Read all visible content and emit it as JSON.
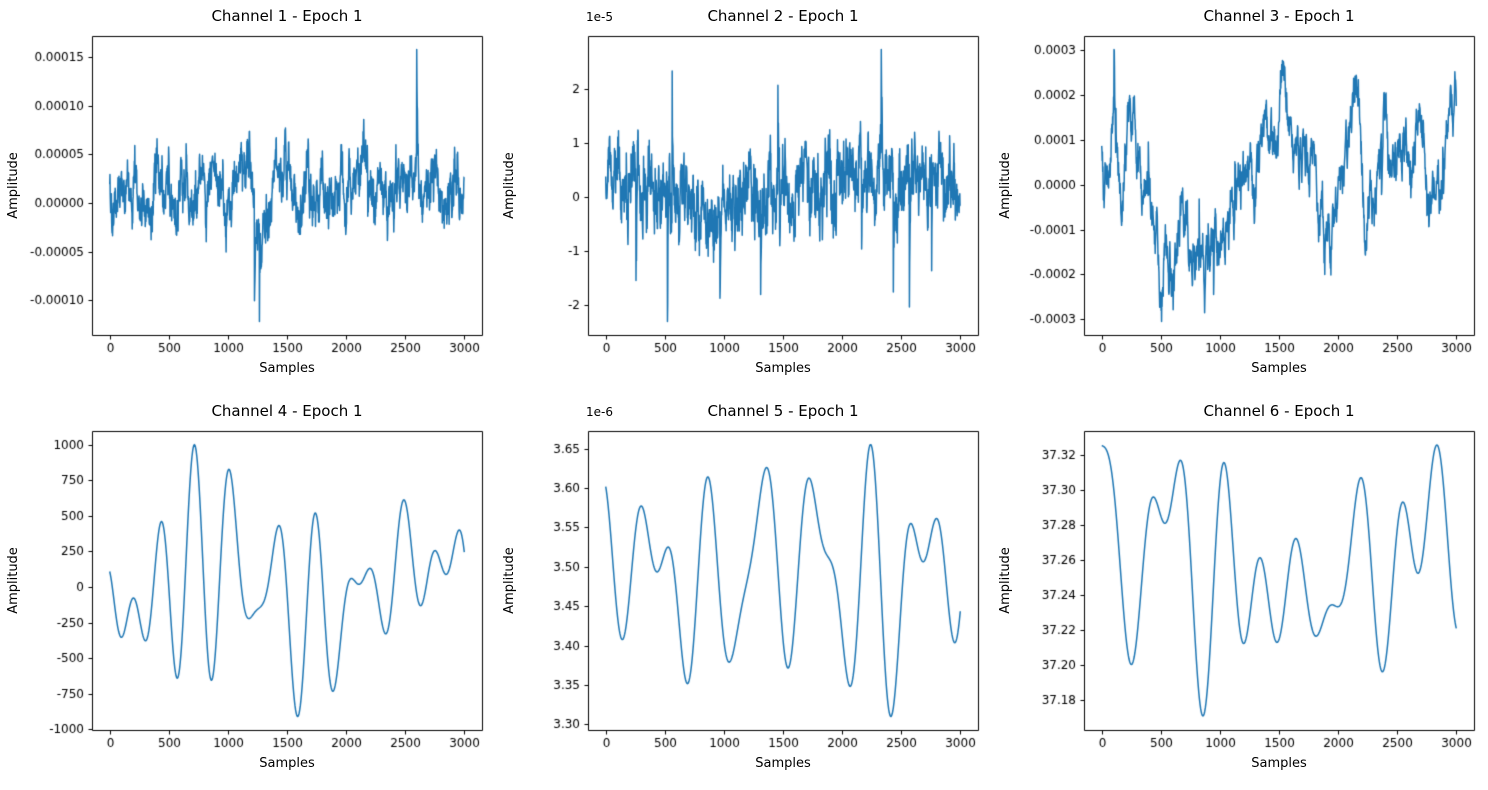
{
  "figure": {
    "background": "#ffffff",
    "line_color": "#1f77b4",
    "text_color": "#000000",
    "rows": 2,
    "cols": 3
  },
  "chart_data": [
    {
      "type": "line",
      "title": "Channel 1 - Epoch 1",
      "xlabel": "Samples",
      "ylabel": "Amplitude",
      "offset_text": "",
      "grid": false,
      "xlim": [
        -150,
        3150
      ],
      "xticks": [
        0,
        500,
        1000,
        1500,
        2000,
        2500,
        3000
      ],
      "xtick_labels": [
        "0",
        "500",
        "1000",
        "1500",
        "2000",
        "2500",
        "3000"
      ],
      "ylim": [
        -0.000136,
        0.000172
      ],
      "yticks": [
        -0.0001,
        -5e-05,
        0,
        5e-05,
        0.0001,
        0.00015
      ],
      "ytick_labels": [
        "-0.00010",
        "-0.00005",
        "0.00000",
        "0.00005",
        "0.00010",
        "0.00015"
      ],
      "signal": {
        "mode": "noisy",
        "seed": 101,
        "n": 1500,
        "min": -0.000122,
        "max": 0.000158,
        "slowDecay": 0.96,
        "slowW": 0.6,
        "medW": 0.8,
        "fastW": 0.9,
        "spikeW": 1.4
      }
    },
    {
      "type": "line",
      "title": "Channel 2 - Epoch 1",
      "xlabel": "Samples",
      "ylabel": "Amplitude",
      "offset_text": "1e-5",
      "grid": false,
      "xlim": [
        -150,
        3150
      ],
      "xticks": [
        0,
        500,
        1000,
        1500,
        2000,
        2500,
        3000
      ],
      "xtick_labels": [
        "0",
        "500",
        "1000",
        "1500",
        "2000",
        "2500",
        "3000"
      ],
      "ylim": [
        -2.56e-05,
        2.98e-05
      ],
      "yticks": [
        -2e-05,
        -1e-05,
        0,
        1e-05,
        2e-05
      ],
      "ytick_labels": [
        "-2",
        "-1",
        "0",
        "1",
        "2"
      ],
      "signal": {
        "mode": "noisy",
        "seed": 202,
        "n": 1500,
        "min": -2.31e-05,
        "max": 2.73e-05,
        "slowDecay": 0.94,
        "slowW": 0.45,
        "medW": 0.85,
        "fastW": 1.0,
        "spikeW": 1.2
      }
    },
    {
      "type": "line",
      "title": "Channel 3 - Epoch 1",
      "xlabel": "Samples",
      "ylabel": "Amplitude",
      "offset_text": "",
      "grid": false,
      "xlim": [
        -150,
        3150
      ],
      "xticks": [
        0,
        500,
        1000,
        1500,
        2000,
        2500,
        3000
      ],
      "xtick_labels": [
        "0",
        "500",
        "1000",
        "1500",
        "2000",
        "2500",
        "3000"
      ],
      "ylim": [
        -0.000335,
        0.000332
      ],
      "yticks": [
        -0.0003,
        -0.0002,
        -0.0001,
        0,
        0.0001,
        0.0002,
        0.0003
      ],
      "ytick_labels": [
        "-0.0003",
        "-0.0002",
        "-0.0001",
        "0.0000",
        "0.0001",
        "0.0002",
        "0.0003"
      ],
      "signal": {
        "mode": "noisy",
        "seed": 303,
        "n": 1500,
        "min": -0.000305,
        "max": 0.000302,
        "slowDecay": 0.985,
        "slowW": 1.3,
        "medW": 0.6,
        "fastW": 0.45,
        "spikeW": 1.0
      }
    },
    {
      "type": "line",
      "title": "Channel 4 - Epoch 1",
      "xlabel": "Samples",
      "ylabel": "Amplitude",
      "offset_text": "",
      "grid": false,
      "xlim": [
        -150,
        3150
      ],
      "xticks": [
        0,
        500,
        1000,
        1500,
        2000,
        2500,
        3000
      ],
      "xtick_labels": [
        "0",
        "500",
        "1000",
        "1500",
        "2000",
        "2500",
        "3000"
      ],
      "ylim": [
        -1005,
        1096
      ],
      "yticks": [
        -1000,
        -750,
        -500,
        -250,
        0,
        250,
        500,
        750,
        1000
      ],
      "ytick_labels": [
        "-1000",
        "-750",
        "-500",
        "-250",
        "0",
        "250",
        "500",
        "750",
        "1000"
      ],
      "signal": {
        "mode": "smooth",
        "seed": 404,
        "n": 600,
        "min": -910,
        "max": 1000,
        "minF": 7,
        "maxF": 13
      }
    },
    {
      "type": "line",
      "title": "Channel 5 - Epoch 1",
      "xlabel": "Samples",
      "ylabel": "Amplitude",
      "offset_text": "1e-6",
      "grid": false,
      "xlim": [
        -150,
        3150
      ],
      "xticks": [
        0,
        500,
        1000,
        1500,
        2000,
        2500,
        3000
      ],
      "xtick_labels": [
        "0",
        "500",
        "1000",
        "1500",
        "2000",
        "2500",
        "3000"
      ],
      "ylim": [
        3.2928e-06,
        3.6723e-06
      ],
      "yticks": [
        3.3e-06,
        3.35e-06,
        3.4e-06,
        3.45e-06,
        3.5e-06,
        3.55e-06,
        3.6e-06,
        3.65e-06
      ],
      "ytick_labels": [
        "3.30",
        "3.35",
        "3.40",
        "3.45",
        "3.50",
        "3.55",
        "3.60",
        "3.65"
      ],
      "signal": {
        "mode": "smooth",
        "seed": 505,
        "n": 600,
        "min": 3.31e-06,
        "max": 3.655e-06,
        "minF": 6,
        "maxF": 12
      }
    },
    {
      "type": "line",
      "title": "Channel 6 - Epoch 1",
      "xlabel": "Samples",
      "ylabel": "Amplitude",
      "offset_text": "",
      "grid": false,
      "xlim": [
        -150,
        3150
      ],
      "xticks": [
        0,
        500,
        1000,
        1500,
        2000,
        2500,
        3000
      ],
      "xtick_labels": [
        "0",
        "500",
        "1000",
        "1500",
        "2000",
        "2500",
        "3000"
      ],
      "ylim": [
        37.163,
        37.334
      ],
      "yticks": [
        37.18,
        37.2,
        37.22,
        37.24,
        37.26,
        37.28,
        37.3,
        37.32
      ],
      "ytick_labels": [
        "37.18",
        "37.20",
        "37.22",
        "37.24",
        "37.26",
        "37.28",
        "37.30",
        "37.32"
      ],
      "signal": {
        "mode": "smooth",
        "seed": 606,
        "n": 600,
        "min": 37.171,
        "max": 37.326,
        "minF": 4,
        "maxF": 10
      }
    }
  ]
}
